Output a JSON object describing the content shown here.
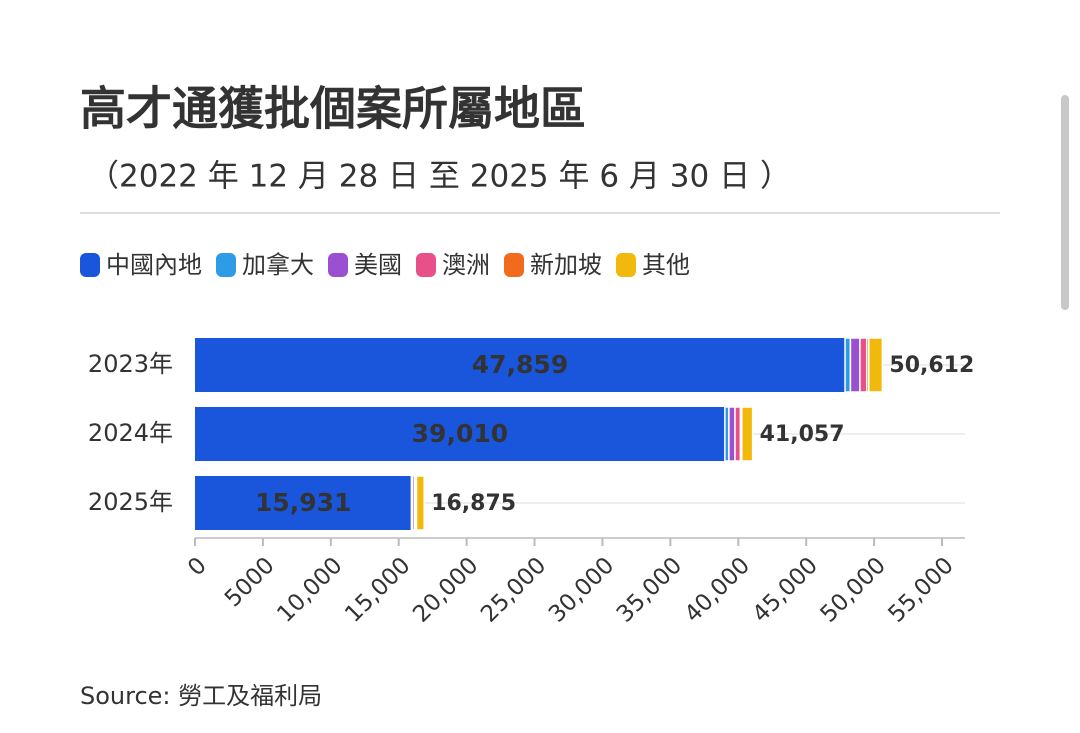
{
  "chart_data": {
    "type": "stacked-hbar",
    "title": "高才通獲批個案所屬地區",
    "subtitle": "（2022 年 12 月 28 日 至 2025 年 6 月 30 日 ）",
    "categories": [
      "2023年",
      "2024年",
      "2025年"
    ],
    "series": [
      {
        "name": "中國內地",
        "color": "#1a56db",
        "values": [
          47859,
          39010,
          15931
        ],
        "value_labels": [
          "47,859",
          "39,010",
          "15,931"
        ]
      },
      {
        "name": "加拿大",
        "color": "#2e9be6",
        "values": [
          400,
          300,
          100
        ]
      },
      {
        "name": "美國",
        "color": "#9b4fd1",
        "values": [
          700,
          450,
          150
        ]
      },
      {
        "name": "澳洲",
        "color": "#e8508a",
        "values": [
          500,
          400,
          100
        ]
      },
      {
        "name": "新加坡",
        "color": "#f26a1b",
        "values": [
          150,
          100,
          30
        ]
      },
      {
        "name": "其他",
        "color": "#f0b90b",
        "values": [
          1003,
          797,
          564
        ]
      }
    ],
    "totals": [
      50612,
      41057,
      16875
    ],
    "total_labels": [
      "50,612",
      "41,057",
      "16,875"
    ],
    "xlim": [
      0,
      55000
    ],
    "xticks": [
      0,
      5000,
      {
        "value": 10000,
        "label": "10,000"
      },
      {
        "value": 15000,
        "label": "15,000"
      },
      {
        "value": 20000,
        "label": "20,000"
      },
      {
        "value": 25000,
        "label": "25,000"
      },
      {
        "value": 30000,
        "label": "30,000"
      },
      {
        "value": 35000,
        "label": "35,000"
      },
      {
        "value": 40000,
        "label": "40,000"
      },
      {
        "value": 45000,
        "label": "45,000"
      },
      {
        "value": 50000,
        "label": "50,000"
      },
      {
        "value": 55000,
        "label": "55,000"
      }
    ],
    "source": "Source: 勞工及福利局"
  }
}
